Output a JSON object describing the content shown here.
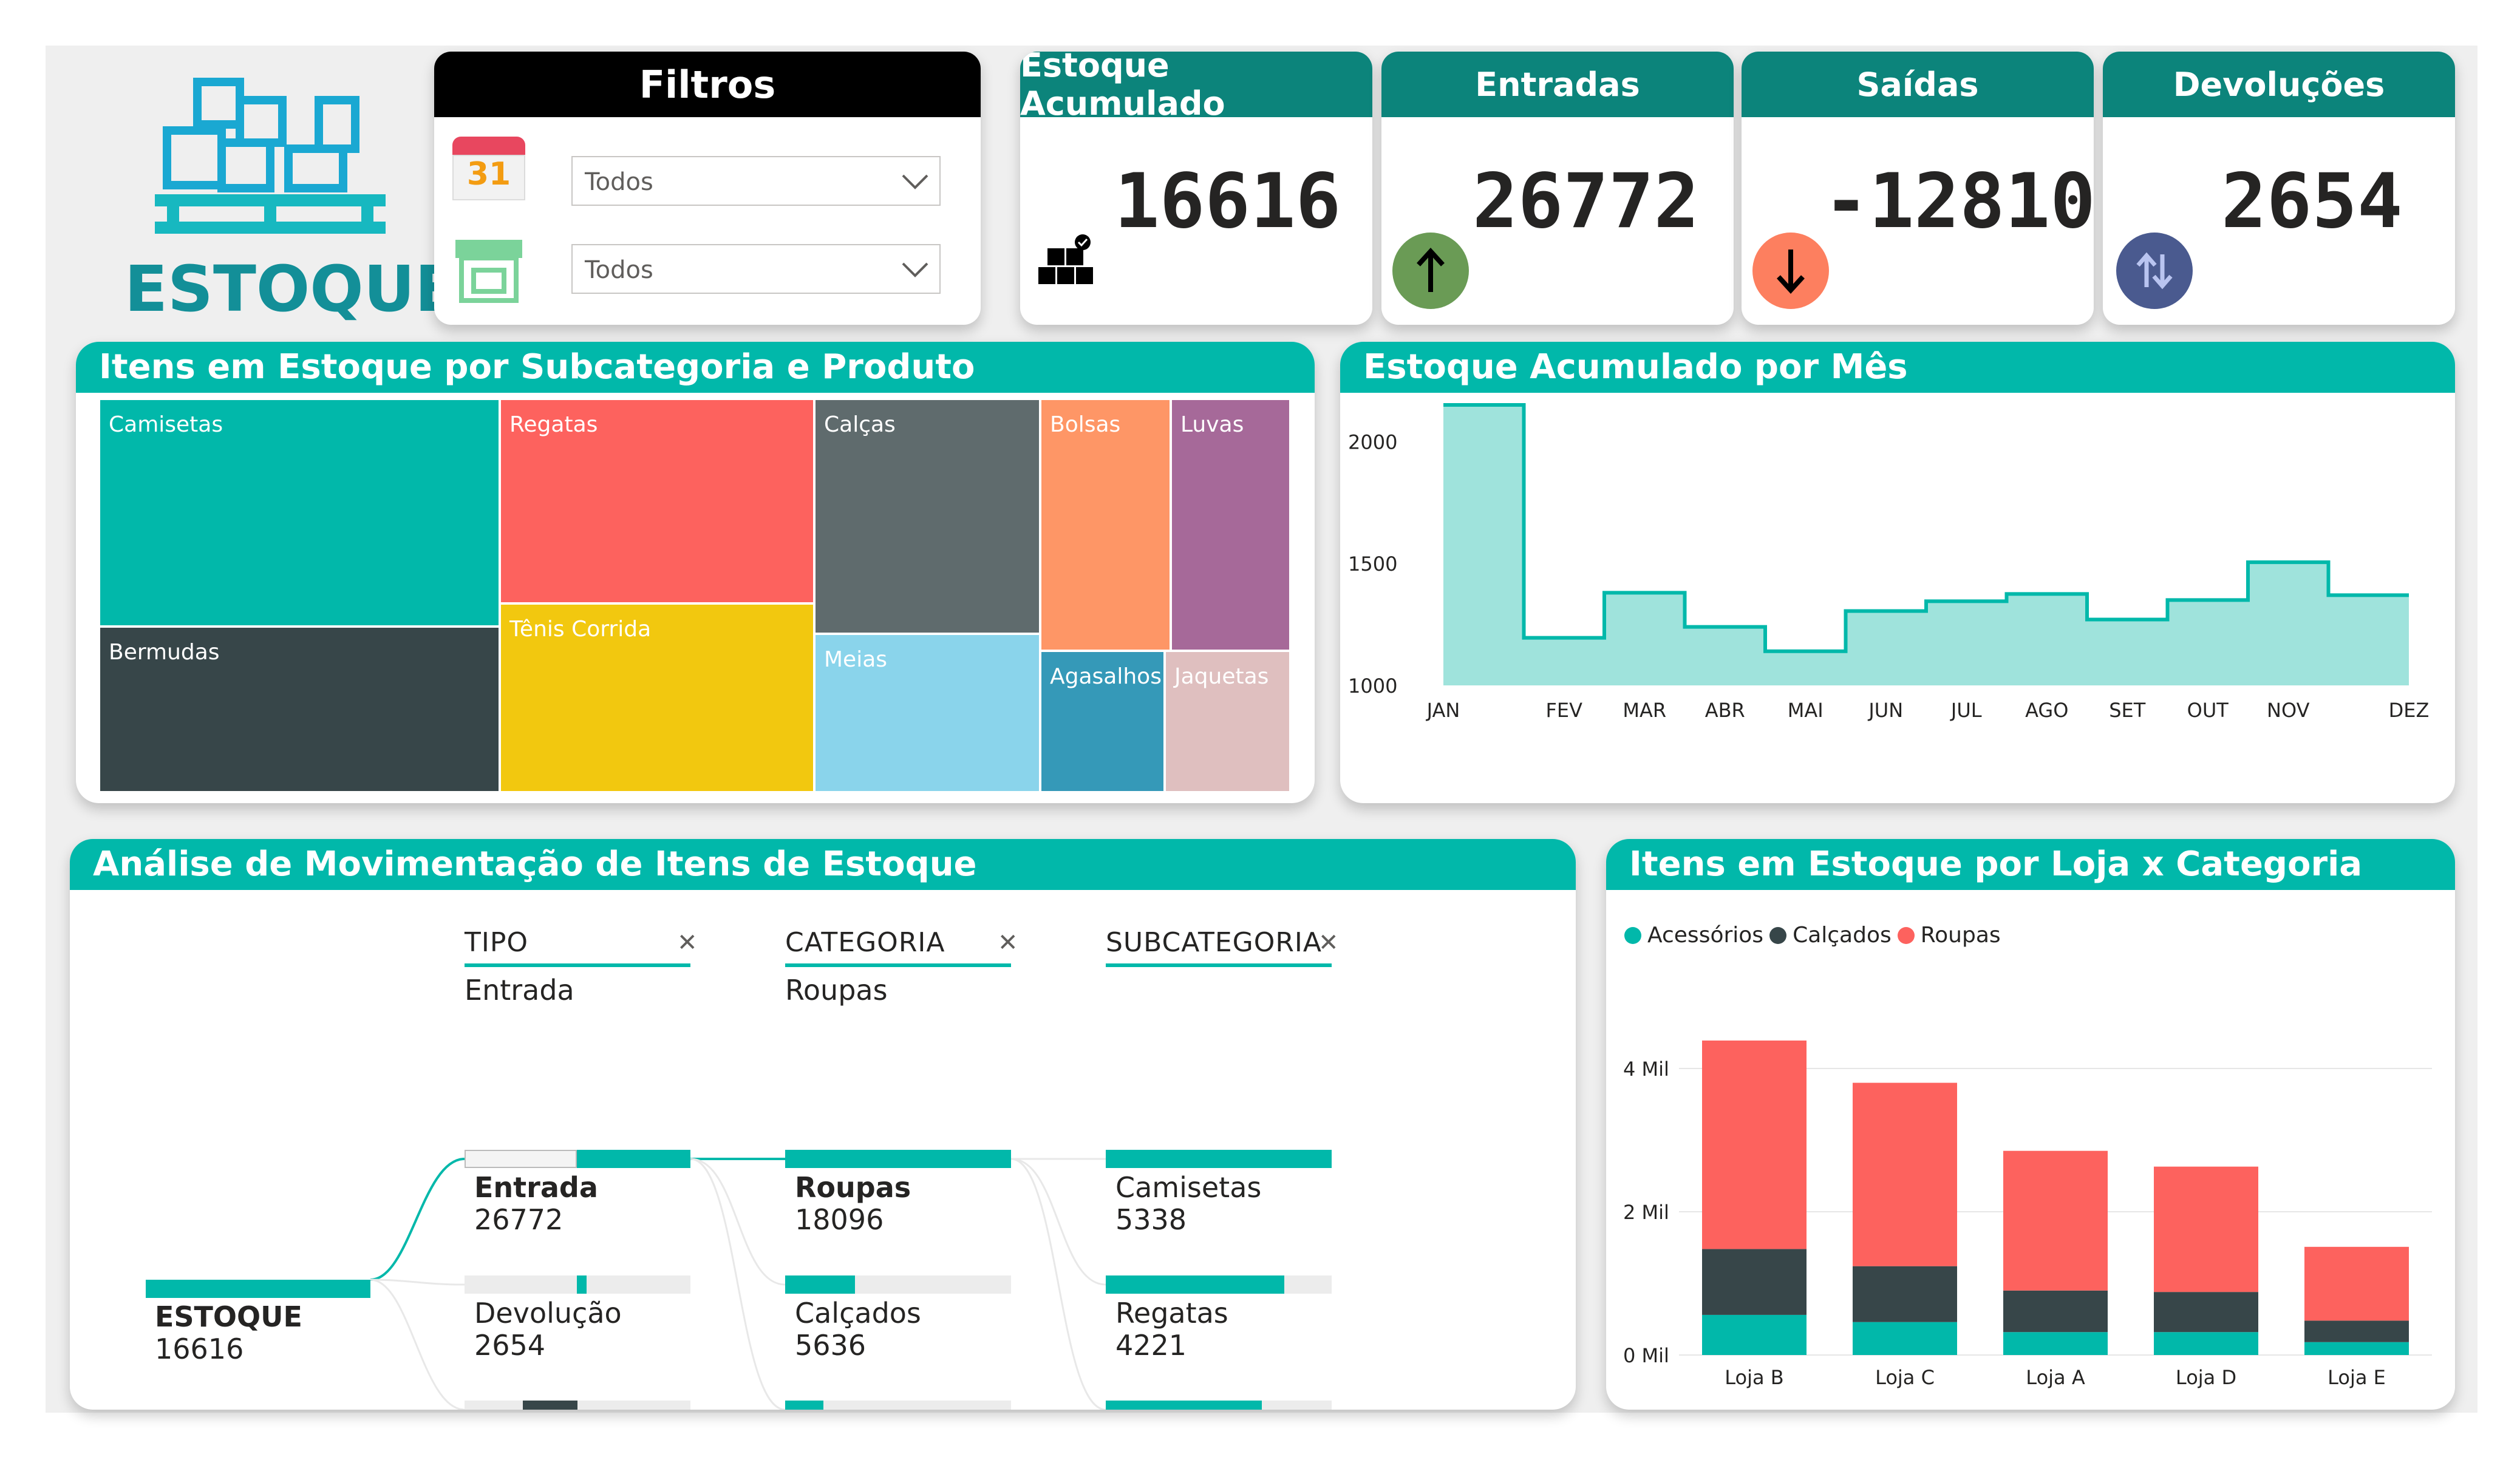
{
  "logo": {
    "text": "ESTOQUE",
    "icon": "warehouse-boxes-icon"
  },
  "filters": {
    "title": "Filtros",
    "date_icon": "calendar-icon",
    "date_icon_text": "31",
    "date_value": "Todos",
    "store_icon": "store-icon",
    "store_value": "Todos"
  },
  "kpis": {
    "acumulado": {
      "title": "Estoque Acumulado",
      "value": "16616",
      "icon": "boxes-check-icon"
    },
    "entradas": {
      "title": "Entradas",
      "value": "26772",
      "icon": "arrow-up-icon"
    },
    "saidas": {
      "title": "Saídas",
      "value": "-12810",
      "icon": "arrow-down-icon"
    },
    "devolucoes": {
      "title": "Devoluções",
      "value": "2654",
      "icon": "swap-arrows-icon"
    }
  },
  "treemap": {
    "title": "Itens em Estoque por Subcategoria e Produto",
    "items": [
      "Camisetas",
      "Regatas",
      "Calças",
      "Bolsas",
      "Luvas",
      "Bermudas",
      "Tênis Corrida",
      "Meias",
      "Agasalhos",
      "Jaquetas"
    ]
  },
  "monthly": {
    "title": "Estoque Acumulado por Mês",
    "y_ticks": [
      "2000",
      "1500",
      "1000"
    ]
  },
  "decomp": {
    "title": "Análise de Movimentação de Itens de Estoque",
    "levels": [
      {
        "header": "TIPO",
        "selected": "Entrada"
      },
      {
        "header": "CATEGORIA",
        "selected": "Roupas"
      },
      {
        "header": "SUBCATEGORIA",
        "selected": ""
      }
    ],
    "root": {
      "name": "ESTOQUE",
      "value": "16616"
    },
    "tipo": [
      {
        "name": "Entrada",
        "value": "26772",
        "fraction": 1.0
      },
      {
        "name": "Devolução",
        "value": "2654",
        "fraction": 0.1
      },
      {
        "name": "",
        "value": "",
        "fraction": 0.48
      }
    ],
    "categoria": [
      {
        "name": "Roupas",
        "value": "18096",
        "fraction": 1.0
      },
      {
        "name": "Calçados",
        "value": "5636",
        "fraction": 0.31
      },
      {
        "name": "",
        "value": "",
        "fraction": 0.17
      }
    ],
    "subcategoria": [
      {
        "name": "Camisetas",
        "value": "5338",
        "fraction": 1.0
      },
      {
        "name": "Regatas",
        "value": "4221",
        "fraction": 0.79
      },
      {
        "name": "",
        "value": "",
        "fraction": 0.69
      }
    ]
  },
  "store_chart": {
    "title": "Itens em Estoque por Loja x Categoria",
    "legend": [
      "Acessórios",
      "Calçados",
      "Roupas"
    ],
    "y_ticks": [
      "4 Mil",
      "2 Mil",
      "0 Mil"
    ]
  },
  "colors": {
    "teal": "#01b8aa",
    "dark": "#374649",
    "red": "#fd625e",
    "yellow": "#f2c80f",
    "slate": "#5f6b6d",
    "lightblue": "#8ad4eb",
    "orange": "#fe9666",
    "purple": "#a66999",
    "blue": "#3599b8",
    "pink": "#dfbfbf"
  },
  "chart_data": [
    {
      "type": "area",
      "title": "Estoque Acumulado por Mês",
      "x": [
        "JAN",
        "FEV",
        "MAR",
        "ABR",
        "MAI",
        "JUN",
        "JUL",
        "AGO",
        "SET",
        "OUT",
        "NOV",
        "DEZ"
      ],
      "values": [
        2150,
        1195,
        1380,
        1240,
        1140,
        1305,
        1345,
        1375,
        1270,
        1350,
        1505,
        1370
      ],
      "ylim": [
        1000,
        2150
      ],
      "step": true
    },
    {
      "type": "bar",
      "stacked": true,
      "title": "Itens em Estoque por Loja x Categoria",
      "categories": [
        "Loja B",
        "Loja C",
        "Loja A",
        "Loja D",
        "Loja E"
      ],
      "series": [
        {
          "name": "Acessórios",
          "values": [
            560,
            460,
            320,
            320,
            180
          ]
        },
        {
          "name": "Calçados",
          "values": [
            920,
            780,
            580,
            560,
            300
          ]
        },
        {
          "name": "Roupas",
          "values": [
            2910,
            2560,
            1950,
            1750,
            1030
          ]
        }
      ],
      "ylim": [
        0,
        4500
      ]
    }
  ]
}
